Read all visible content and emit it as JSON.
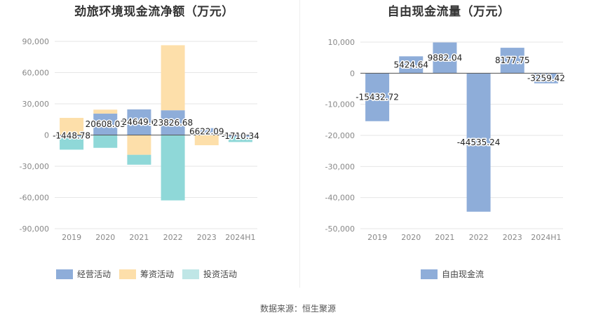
{
  "source_note": "数据来源：恒生聚源",
  "chart_data": [
    {
      "type": "bar",
      "stacked": true,
      "title": "劲旅环境现金流净额（万元）",
      "categories": [
        "2019",
        "2020",
        "2021",
        "2022",
        "2023",
        "2024H1"
      ],
      "ylim": [
        -90000,
        90000
      ],
      "yticks": [
        90000,
        60000,
        30000,
        0,
        -30000,
        -60000,
        -90000
      ],
      "ytick_labels": [
        "90,000",
        "60,000",
        "30,000",
        "0",
        "-30,000",
        "-60,000",
        "-90,000"
      ],
      "grid": true,
      "legend_position": "bottom-left",
      "series": [
        {
          "name": "经营活动",
          "color": "#8eadd9",
          "values": [
            -1448.78,
            20608.03,
            24649.6,
            23826.68,
            6622.09,
            -1710.34
          ]
        },
        {
          "name": "筹资活动",
          "color": "#fddfaa",
          "values": [
            16500,
            3800,
            -19000,
            62500,
            -9800,
            200
          ]
        },
        {
          "name": "投资活动",
          "color": "#8fd8d8",
          "values": [
            -12600,
            -12300,
            -9500,
            -62800,
            0,
            -5000
          ]
        }
      ],
      "data_labels": [
        "-1448.78",
        "20608.03",
        "24649.6",
        "23826.68",
        "6622.09",
        "-1710.34"
      ]
    },
    {
      "type": "bar",
      "title": "自由现金流量（万元）",
      "categories": [
        "2019",
        "2020",
        "2021",
        "2022",
        "2023",
        "2024H1"
      ],
      "ylim": [
        -50000,
        10000
      ],
      "yticks": [
        10000,
        0,
        -10000,
        -20000,
        -30000,
        -40000,
        -50000
      ],
      "ytick_labels": [
        "10,000",
        "0",
        "-10,000",
        "-20,000",
        "-30,000",
        "-40,000",
        "-50,000"
      ],
      "grid": true,
      "legend_position": "bottom-center",
      "series": [
        {
          "name": "自由现金流",
          "color": "#8eadd9",
          "values": [
            -15432.72,
            5424.64,
            9882.04,
            -44535.24,
            8177.75,
            -3259.42
          ]
        }
      ],
      "data_labels": [
        "-15432.72",
        "5424.64",
        "9882.04",
        "-44535.24",
        "8177.75",
        "-3259.42"
      ]
    }
  ]
}
